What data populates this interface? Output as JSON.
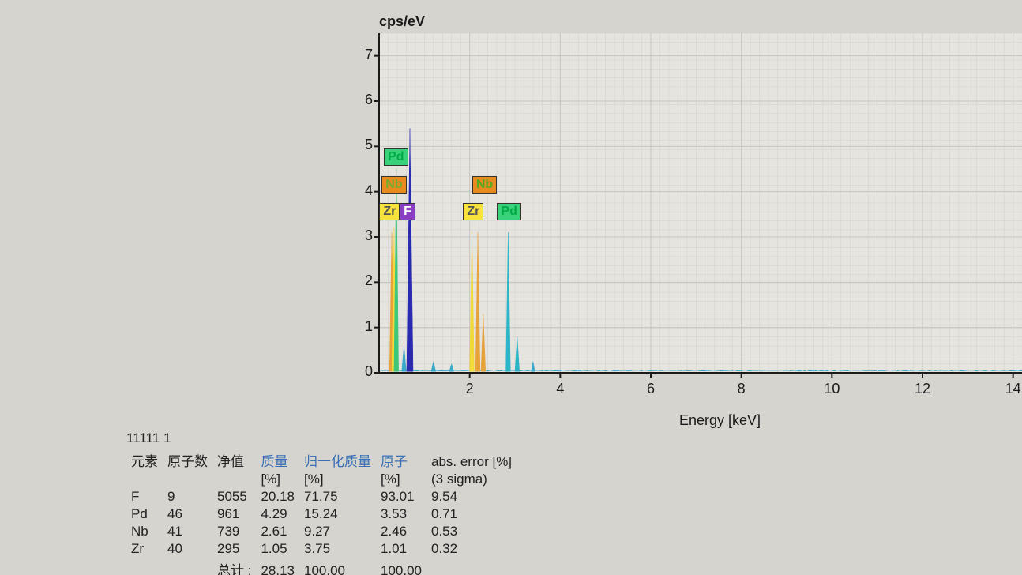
{
  "spectrum": {
    "ylabel": "cps/eV",
    "xlabel": "Energy [keV]",
    "xlim": [
      0,
      15
    ],
    "ylim": [
      0,
      7.5
    ],
    "xticks": [
      2,
      4,
      6,
      8,
      10,
      12,
      14
    ],
    "yticks": [
      0,
      1,
      2,
      3,
      4,
      5,
      6,
      7
    ],
    "grid_minor_count_x": 75,
    "grid_minor_count_y": 38,
    "grid_color": "#c7c5c0",
    "grid_minor_color": "#d2d0cb",
    "axis_color": "#1a1a1a",
    "background_color": "#e6e4df",
    "baseline_color": "#3aa8c9",
    "peak_labels": [
      {
        "text": "Pd",
        "x_keV": 0.35,
        "y_cps": 4.6,
        "bg": "#39d27a",
        "fg": "#0a4"
      },
      {
        "text": "Nb",
        "x_keV": 0.3,
        "y_cps": 4.0,
        "bg": "#e78b1f",
        "fg": "#7a3"
      },
      {
        "text": "Zr",
        "x_keV": 0.25,
        "y_cps": 3.4,
        "bg": "#f7e33c",
        "fg": "#555"
      },
      {
        "text": "F",
        "x_keV": 0.7,
        "y_cps": 3.4,
        "bg": "#8a3fc2",
        "fg": "#fff"
      },
      {
        "text": "Nb",
        "x_keV": 2.3,
        "y_cps": 4.0,
        "bg": "#e78b1f",
        "fg": "#5a2"
      },
      {
        "text": "Zr",
        "x_keV": 2.1,
        "y_cps": 3.4,
        "bg": "#f7e33c",
        "fg": "#555"
      },
      {
        "text": "Pd",
        "x_keV": 2.85,
        "y_cps": 3.4,
        "bg": "#39d27a",
        "fg": "#0a4"
      }
    ],
    "peaks": [
      {
        "x_keV": 0.28,
        "h": 3.1,
        "w": 0.05,
        "color": "#e7a23a"
      },
      {
        "x_keV": 0.33,
        "h": 3.2,
        "w": 0.05,
        "color": "#f2d838"
      },
      {
        "x_keV": 0.38,
        "h": 4.5,
        "w": 0.05,
        "color": "#3ec77a"
      },
      {
        "x_keV": 0.55,
        "h": 0.6,
        "w": 0.05,
        "color": "#3aa8c9"
      },
      {
        "x_keV": 0.68,
        "h": 5.4,
        "w": 0.07,
        "color": "#2a2ab0"
      },
      {
        "x_keV": 1.2,
        "h": 0.25,
        "w": 0.05,
        "color": "#3aa8c9"
      },
      {
        "x_keV": 1.6,
        "h": 0.2,
        "w": 0.05,
        "color": "#3aa8c9"
      },
      {
        "x_keV": 2.05,
        "h": 3.1,
        "w": 0.05,
        "color": "#f2d838"
      },
      {
        "x_keV": 2.18,
        "h": 3.1,
        "w": 0.05,
        "color": "#e7a23a"
      },
      {
        "x_keV": 2.3,
        "h": 1.3,
        "w": 0.05,
        "color": "#e7a23a"
      },
      {
        "x_keV": 2.85,
        "h": 3.1,
        "w": 0.05,
        "color": "#2bb5c9"
      },
      {
        "x_keV": 3.05,
        "h": 0.8,
        "w": 0.05,
        "color": "#2bb5c9"
      },
      {
        "x_keV": 3.4,
        "h": 0.25,
        "w": 0.04,
        "color": "#3aa8c9"
      }
    ]
  },
  "table": {
    "spectrum_id": "11111 1",
    "headers": {
      "element": "元素",
      "atomic_no": "原子数",
      "net": "净值",
      "mass": "质量",
      "norm_mass": "归一化质量",
      "atom": "原子",
      "abs_err": "abs. error [%]",
      "pct": "[%]",
      "sigma": "(3 sigma)"
    },
    "rows": [
      {
        "el": "F",
        "z": "9",
        "net": "5055",
        "mass": "20.18",
        "norm": "71.75",
        "atom": "93.01",
        "err": "9.54"
      },
      {
        "el": "Pd",
        "z": "46",
        "net": "961",
        "mass": "4.29",
        "norm": "15.24",
        "atom": "3.53",
        "err": "0.71"
      },
      {
        "el": "Nb",
        "z": "41",
        "net": "739",
        "mass": "2.61",
        "norm": "9.27",
        "atom": "2.46",
        "err": "0.53"
      },
      {
        "el": "Zr",
        "z": "40",
        "net": "295",
        "mass": "1.05",
        "norm": "3.75",
        "atom": "1.01",
        "err": "0.32"
      }
    ],
    "totals": {
      "label": "总计 :",
      "mass": "28.13",
      "norm": "100.00",
      "atom": "100.00"
    }
  }
}
